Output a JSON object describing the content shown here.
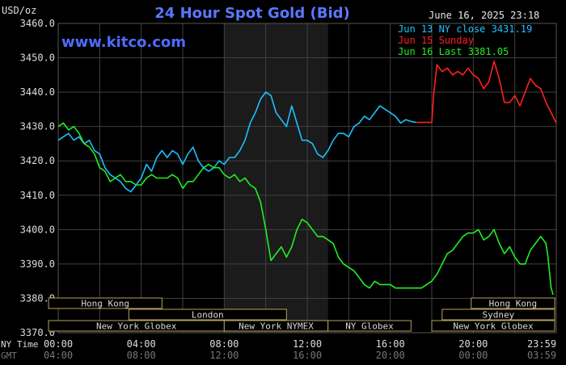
{
  "header": {
    "unit_label": "USD/oz",
    "title": "24 Hour Spot Gold (Bid)",
    "watermark": "www.kitco.com",
    "timestamp": "June 16, 2025 23:18"
  },
  "legend": [
    {
      "label": "Jun 13 NY close 3431.19",
      "color": "#1ec0ff"
    },
    {
      "label": "Jun 15 Sunday",
      "color": "#ff2020"
    },
    {
      "label": "Jun 16 Last 3381.05",
      "color": "#22ee22"
    }
  ],
  "x_axis": {
    "row1_title": "NY Time",
    "row2_title": "GMT",
    "ny_ticks": [
      "00:00",
      "04:00",
      "08:00",
      "12:00",
      "16:00",
      "20:00",
      "23:59"
    ],
    "gmt_ticks": [
      "04:00",
      "08:00",
      "12:00",
      "16:00",
      "20:00",
      "00:00",
      "03:59"
    ]
  },
  "sessions": [
    {
      "label": "Hong Kong",
      "row": 0,
      "start": -1.6,
      "end": 5.0
    },
    {
      "label": "Hong Kong",
      "row": 0,
      "start": 19.9,
      "end": 23.99
    },
    {
      "label": "Sydney",
      "row": 1,
      "start": 18.5,
      "end": 23.99
    },
    {
      "label": "London",
      "row": 1,
      "start": 3.4,
      "end": 11.0
    },
    {
      "label": "New York Globex",
      "row": 2,
      "start": -1.6,
      "end": 8.0
    },
    {
      "label": "New York NYMEX",
      "row": 2,
      "start": 8.0,
      "end": 13.0
    },
    {
      "label": "NY Globex",
      "row": 2,
      "start": 13.0,
      "end": 17.0
    },
    {
      "label": "New York Globex",
      "row": 2,
      "start": 18.0,
      "end": 23.99
    }
  ],
  "colors": {
    "background": "#000000",
    "grid": "#404040",
    "shade": "#1b1b1b",
    "title": "#5a78ff",
    "axis_text": "#dddddd",
    "session_fill": "#000000",
    "session_border": "#b8a060",
    "session_text": "#d8d8d8"
  },
  "chart_data": {
    "type": "line",
    "x_unit": "hours (NY time)",
    "xlim": [
      0,
      24
    ],
    "ylim": [
      3370,
      3460
    ],
    "yticks": [
      "3460.0",
      "3450.0",
      "3440.0",
      "3430.0",
      "3420.0",
      "3410.0",
      "3400.0",
      "3390.0",
      "3380.0",
      "3370.0"
    ],
    "shaded_range": [
      8.0,
      13.0
    ],
    "grid": true,
    "legend_position": "top-right",
    "series": [
      {
        "name": "Jun 13 NY close 3431.19",
        "color": "#1ec0ff",
        "points": [
          [
            0.0,
            3426
          ],
          [
            0.25,
            3427
          ],
          [
            0.5,
            3428
          ],
          [
            0.75,
            3426
          ],
          [
            1.0,
            3427
          ],
          [
            1.25,
            3425
          ],
          [
            1.5,
            3426
          ],
          [
            1.75,
            3423
          ],
          [
            2.0,
            3422
          ],
          [
            2.25,
            3418
          ],
          [
            2.5,
            3416
          ],
          [
            2.75,
            3415
          ],
          [
            3.0,
            3414
          ],
          [
            3.25,
            3412
          ],
          [
            3.5,
            3411
          ],
          [
            3.75,
            3413
          ],
          [
            4.0,
            3415
          ],
          [
            4.25,
            3419
          ],
          [
            4.5,
            3417
          ],
          [
            4.75,
            3421
          ],
          [
            5.0,
            3423
          ],
          [
            5.25,
            3421
          ],
          [
            5.5,
            3423
          ],
          [
            5.75,
            3422
          ],
          [
            6.0,
            3419
          ],
          [
            6.25,
            3422
          ],
          [
            6.5,
            3424
          ],
          [
            6.75,
            3420
          ],
          [
            7.0,
            3418
          ],
          [
            7.25,
            3417
          ],
          [
            7.5,
            3418
          ],
          [
            7.75,
            3420
          ],
          [
            8.0,
            3419
          ],
          [
            8.25,
            3421
          ],
          [
            8.5,
            3421
          ],
          [
            8.75,
            3423
          ],
          [
            9.0,
            3426
          ],
          [
            9.25,
            3431
          ],
          [
            9.5,
            3434
          ],
          [
            9.75,
            3438
          ],
          [
            10.0,
            3440
          ],
          [
            10.25,
            3439
          ],
          [
            10.5,
            3434
          ],
          [
            10.75,
            3432
          ],
          [
            11.0,
            3430
          ],
          [
            11.25,
            3436
          ],
          [
            11.5,
            3431
          ],
          [
            11.75,
            3426
          ],
          [
            12.0,
            3426
          ],
          [
            12.25,
            3425
          ],
          [
            12.5,
            3422
          ],
          [
            12.75,
            3421
          ],
          [
            13.0,
            3423
          ],
          [
            13.25,
            3426
          ],
          [
            13.5,
            3428
          ],
          [
            13.75,
            3428
          ],
          [
            14.0,
            3427
          ],
          [
            14.25,
            3430
          ],
          [
            14.5,
            3431
          ],
          [
            14.75,
            3433
          ],
          [
            15.0,
            3432
          ],
          [
            15.25,
            3434
          ],
          [
            15.5,
            3436
          ],
          [
            15.75,
            3435
          ],
          [
            16.0,
            3434
          ],
          [
            16.25,
            3433
          ],
          [
            16.5,
            3431
          ],
          [
            16.75,
            3432
          ],
          [
            17.0,
            3431.5
          ],
          [
            17.25,
            3431.2
          ]
        ]
      },
      {
        "name": "Jun 15 Sunday",
        "color": "#ff2020",
        "points": [
          [
            17.25,
            3431.2
          ],
          [
            17.6,
            3431.2
          ],
          [
            18.0,
            3431.2
          ],
          [
            18.1,
            3440
          ],
          [
            18.25,
            3448
          ],
          [
            18.5,
            3446
          ],
          [
            18.75,
            3447
          ],
          [
            19.0,
            3445
          ],
          [
            19.25,
            3446
          ],
          [
            19.5,
            3445
          ],
          [
            19.75,
            3447
          ],
          [
            20.0,
            3445
          ],
          [
            20.25,
            3444
          ],
          [
            20.5,
            3441
          ],
          [
            20.75,
            3443
          ],
          [
            21.0,
            3449
          ],
          [
            21.25,
            3444
          ],
          [
            21.5,
            3437
          ],
          [
            21.75,
            3437
          ],
          [
            22.0,
            3439
          ],
          [
            22.25,
            3436
          ],
          [
            22.5,
            3440
          ],
          [
            22.75,
            3444
          ],
          [
            23.0,
            3442
          ],
          [
            23.25,
            3441
          ],
          [
            23.5,
            3437
          ],
          [
            23.75,
            3434
          ],
          [
            24.0,
            3431
          ]
        ]
      },
      {
        "name": "Jun 16 Last 3381.05",
        "color": "#22ee22",
        "points": [
          [
            0.0,
            3430
          ],
          [
            0.25,
            3431
          ],
          [
            0.5,
            3429
          ],
          [
            0.75,
            3430
          ],
          [
            1.0,
            3428
          ],
          [
            1.25,
            3425
          ],
          [
            1.5,
            3424
          ],
          [
            1.75,
            3422
          ],
          [
            2.0,
            3418
          ],
          [
            2.25,
            3417
          ],
          [
            2.5,
            3414
          ],
          [
            2.75,
            3415
          ],
          [
            3.0,
            3416
          ],
          [
            3.25,
            3414
          ],
          [
            3.5,
            3414
          ],
          [
            3.75,
            3413
          ],
          [
            4.0,
            3413
          ],
          [
            4.25,
            3415
          ],
          [
            4.5,
            3416
          ],
          [
            4.75,
            3415
          ],
          [
            5.0,
            3415
          ],
          [
            5.25,
            3415
          ],
          [
            5.5,
            3416
          ],
          [
            5.75,
            3415
          ],
          [
            6.0,
            3412
          ],
          [
            6.25,
            3414
          ],
          [
            6.5,
            3414
          ],
          [
            6.75,
            3416
          ],
          [
            7.0,
            3418
          ],
          [
            7.25,
            3419
          ],
          [
            7.5,
            3418
          ],
          [
            7.75,
            3418
          ],
          [
            8.0,
            3416
          ],
          [
            8.25,
            3415
          ],
          [
            8.5,
            3416
          ],
          [
            8.75,
            3414
          ],
          [
            9.0,
            3415
          ],
          [
            9.25,
            3413
          ],
          [
            9.5,
            3412
          ],
          [
            9.75,
            3408
          ],
          [
            10.0,
            3400
          ],
          [
            10.25,
            3391
          ],
          [
            10.5,
            3393
          ],
          [
            10.75,
            3395
          ],
          [
            11.0,
            3392
          ],
          [
            11.25,
            3395
          ],
          [
            11.5,
            3400
          ],
          [
            11.75,
            3403
          ],
          [
            12.0,
            3402
          ],
          [
            12.25,
            3400
          ],
          [
            12.5,
            3398
          ],
          [
            12.75,
            3398
          ],
          [
            13.0,
            3397
          ],
          [
            13.25,
            3396
          ],
          [
            13.5,
            3392
          ],
          [
            13.75,
            3390
          ],
          [
            14.0,
            3389
          ],
          [
            14.25,
            3388
          ],
          [
            14.5,
            3386
          ],
          [
            14.75,
            3384
          ],
          [
            15.0,
            3383
          ],
          [
            15.25,
            3385
          ],
          [
            15.5,
            3384
          ],
          [
            15.75,
            3384
          ],
          [
            16.0,
            3384
          ],
          [
            16.25,
            3383
          ],
          [
            16.5,
            3383
          ],
          [
            16.75,
            3383
          ],
          [
            17.0,
            3383
          ],
          [
            17.25,
            3383
          ],
          [
            17.5,
            3383
          ],
          [
            17.75,
            3384
          ],
          [
            18.0,
            3385
          ],
          [
            18.25,
            3387
          ],
          [
            18.5,
            3390
          ],
          [
            18.75,
            3393
          ],
          [
            19.0,
            3394
          ],
          [
            19.25,
            3396
          ],
          [
            19.5,
            3398
          ],
          [
            19.75,
            3399
          ],
          [
            20.0,
            3399
          ],
          [
            20.25,
            3400
          ],
          [
            20.5,
            3397
          ],
          [
            20.75,
            3398
          ],
          [
            21.0,
            3400
          ],
          [
            21.25,
            3396
          ],
          [
            21.5,
            3393
          ],
          [
            21.75,
            3395
          ],
          [
            22.0,
            3392
          ],
          [
            22.25,
            3390
          ],
          [
            22.5,
            3390
          ],
          [
            22.75,
            3394
          ],
          [
            23.0,
            3396
          ],
          [
            23.25,
            3398
          ],
          [
            23.5,
            3396
          ],
          [
            23.6,
            3392
          ],
          [
            23.75,
            3383
          ],
          [
            23.85,
            3381.05
          ]
        ]
      }
    ]
  }
}
